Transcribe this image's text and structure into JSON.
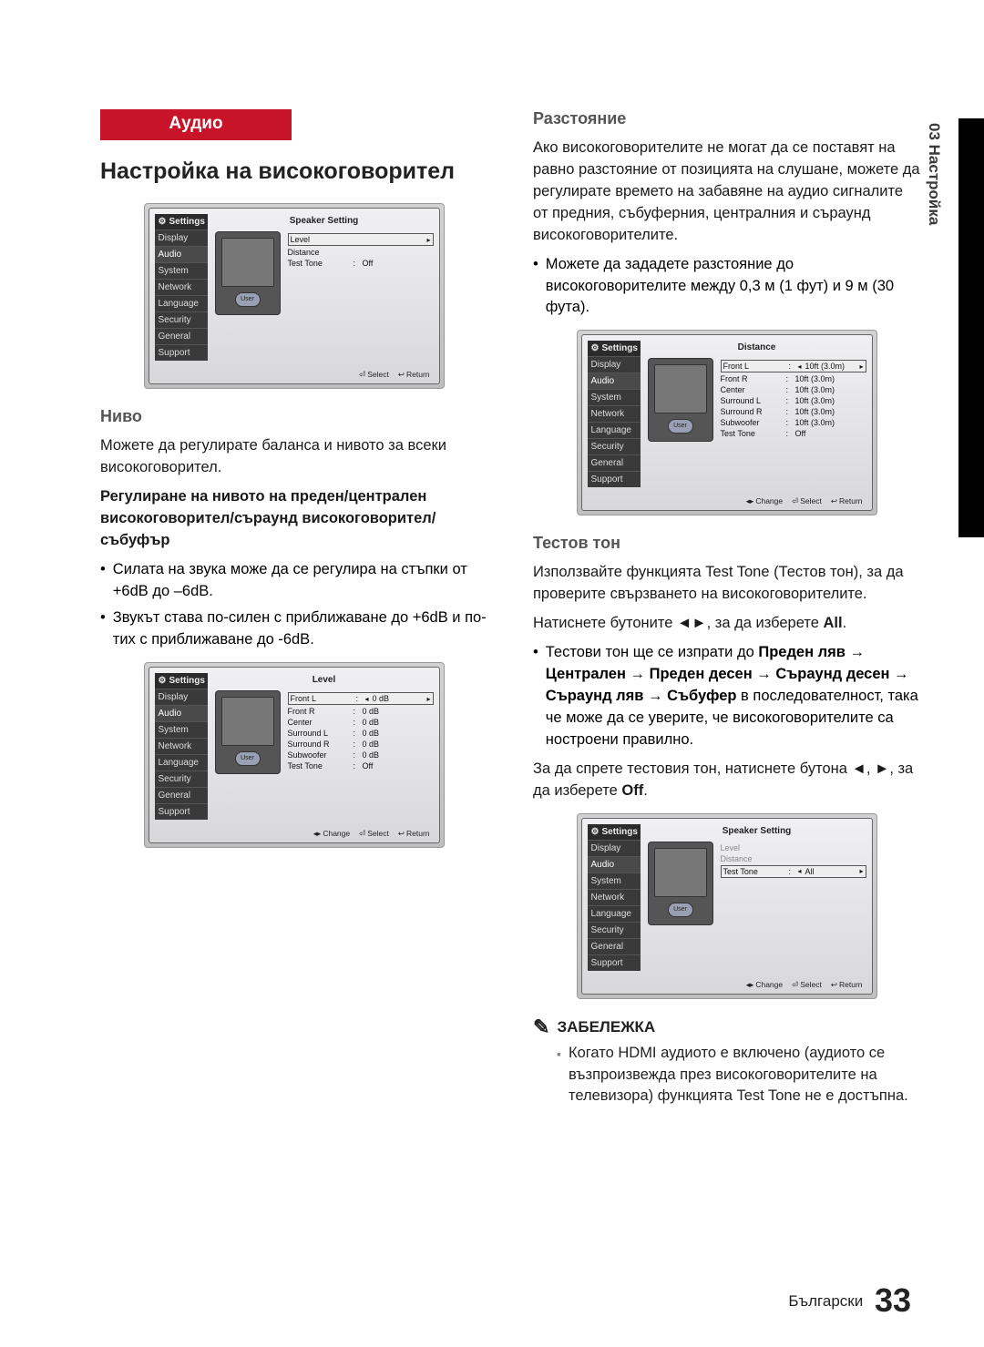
{
  "side_label": "03  Настройка",
  "red_header": "Аудио",
  "h_main": "Настройка на високоговорител",
  "h_level": "Ниво",
  "p_level": "Можете да регулирате баланса и нивото за всеки високоговорител.",
  "p_adjust_bold": "Регулиране на нивото на преден/централен високоговорител/съраунд високоговорител/ събуфър",
  "b_level1": "Силата на звука може да се регулира на стъпки от +6dB до –6dB.",
  "b_level2": "Звукът става по-силен с приближаване до +6dB и по-тих с приближаване до -6dB.",
  "h_dist": "Разстояние",
  "p_dist": "Ако високоговорителите не могат да се поставят на равно разстояние от позицията на слушане, можете да регулирате времето на забавяне на аудио сигналите от предния, събуферния, централния и съраунд високоговорителите.",
  "b_dist": "Можете да зададете разстояние до високоговорителите между 0,3 м (1 фут) и 9 м (30 фута).",
  "h_tone": "Тестов тон",
  "p_tone": "Използвайте функцията Test Tone (Тестов тон), за да проверите свързването на високоговорителите.",
  "p_press_head": "Натиснете бутоните ◄►, за да изберете ",
  "p_press_tail": "All",
  "p_seq_pre": "Тестови тон ще се изпрати до ",
  "p_seq_bold": "Преден ляв → Централен → Преден десен → Съраунд десен → Съраунд ляв → Събуфер",
  "p_seq_post": " в последователност, така че може да се уверите, че високоговорителите са ностроени правилно.",
  "p_stop_pre": "За да спрете тестовия тон, натиснете бутона ◄, ►, за да изберете ",
  "p_stop_off": "Off",
  "note_hdr": "ЗАБЕЛЕЖКА",
  "note_body": "Когато HDMI аудиото е включено (аудиото се възпроизвежда през високоговорителите на телевизора) функцията Test Tone не е достъпна.",
  "foot_lang": "Български",
  "foot_page": "33",
  "shot_sidebar_title": "Settings",
  "shot_sidebar": [
    "Display",
    "Audio",
    "System",
    "Network",
    "Language",
    "Security",
    "General",
    "Support"
  ],
  "shot_user": "User",
  "shot1": {
    "title": "Speaker Setting",
    "rows": [
      {
        "label": "Level",
        "val": "",
        "sel": true
      },
      {
        "label": "Distance",
        "val": ""
      },
      {
        "label": "Test Tone",
        "colon": ":",
        "val": "Off"
      }
    ],
    "foot": [
      "Select",
      "Return"
    ],
    "foot_icons": [
      "ic-e",
      "ic-r"
    ]
  },
  "shot2": {
    "title": "Level",
    "rows": [
      {
        "label": "Front L",
        "colon": ":",
        "val": "0 dB",
        "sel": true,
        "arrows": true
      },
      {
        "label": "Front R",
        "colon": ":",
        "val": "0 dB"
      },
      {
        "label": "Center",
        "colon": ":",
        "val": "0 dB"
      },
      {
        "label": "Surround L",
        "colon": ":",
        "val": "0 dB"
      },
      {
        "label": "Surround R",
        "colon": ":",
        "val": "0 dB"
      },
      {
        "label": "Subwoofer",
        "colon": ":",
        "val": "0 dB"
      },
      {
        "label": "Test Tone",
        "colon": ":",
        "val": "Off"
      }
    ],
    "foot": [
      "Change",
      "Select",
      "Return"
    ],
    "foot_icons": [
      "ic-lr",
      "ic-e",
      "ic-r"
    ]
  },
  "shot3": {
    "title": "Distance",
    "rows": [
      {
        "label": "Front L",
        "colon": ":",
        "val": "10ft (3.0m)",
        "sel": true,
        "arrows": true
      },
      {
        "label": "Front R",
        "colon": ":",
        "val": "10ft (3.0m)"
      },
      {
        "label": "Center",
        "colon": ":",
        "val": "10ft (3.0m)"
      },
      {
        "label": "Surround L",
        "colon": ":",
        "val": "10ft (3.0m)"
      },
      {
        "label": "Surround R",
        "colon": ":",
        "val": "10ft (3.0m)"
      },
      {
        "label": "Subwoofer",
        "colon": ":",
        "val": "10ft (3.0m)"
      },
      {
        "label": "Test Tone",
        "colon": ":",
        "val": "Off"
      }
    ],
    "foot": [
      "Change",
      "Select",
      "Return"
    ],
    "foot_icons": [
      "ic-lr",
      "ic-e",
      "ic-r"
    ]
  },
  "shot4": {
    "title": "Speaker Setting",
    "rows": [
      {
        "label": "Level",
        "val": "",
        "dim": true
      },
      {
        "label": "Distance",
        "val": "",
        "dim": true
      },
      {
        "label": "Test Tone",
        "colon": ":",
        "val": "All",
        "sel": true,
        "arrows": true
      }
    ],
    "foot": [
      "Change",
      "Select",
      "Return"
    ],
    "foot_icons": [
      "ic-lr",
      "ic-e",
      "ic-r"
    ]
  }
}
